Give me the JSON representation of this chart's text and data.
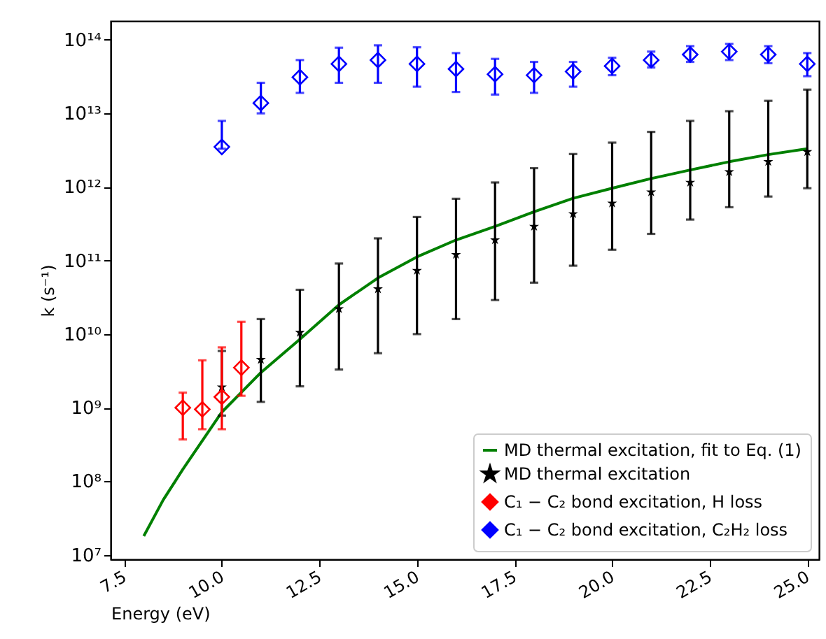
{
  "chart_data": {
    "type": "scatter",
    "xlabel": "Energy (eV)",
    "ylabel": "k (s⁻¹)",
    "log": "y",
    "legend": "bottom right",
    "xlim": [
      7.15,
      25.3
    ],
    "xticks": [
      7.5,
      {
        "value": 10,
        "label": "10.0"
      },
      12.5,
      {
        "value": 15,
        "label": "15.0"
      },
      17.5,
      {
        "value": 20,
        "label": "20.0"
      },
      22.5,
      {
        "value": 25,
        "label": "25.0"
      }
    ],
    "ylim": [
      8700000,
      180000000000000
    ],
    "yticks": [
      {
        "value": 10000000,
        "label": "10⁷"
      },
      {
        "value": 100000000,
        "label": "10⁸"
      },
      {
        "value": 1000000000,
        "label": "10⁹"
      },
      {
        "value": 10000000000,
        "label": "10¹⁰"
      },
      {
        "value": 100000000000,
        "label": "10¹¹"
      },
      {
        "value": 1000000000000,
        "label": "10¹²"
      },
      {
        "value": 10000000000000,
        "label": "10¹³"
      },
      {
        "value": 100000000000000,
        "label": "10¹⁴"
      }
    ],
    "series": [
      {
        "name": "MD thermal excitation, fit to Eq. (1)",
        "type": "line",
        "color": "#008000",
        "marker": "none",
        "x": [
          8,
          8.5,
          9,
          10,
          11,
          12,
          13,
          14,
          15,
          16,
          17,
          18,
          19,
          20,
          21,
          22,
          23,
          24,
          25
        ],
        "values": [
          18000000,
          56000000,
          145000000,
          870000000,
          3000000000,
          8500000000,
          25000000000,
          58000000000,
          112000000000,
          190000000000,
          290000000000,
          460000000000,
          700000000000,
          960000000000,
          1300000000000,
          1700000000000,
          2200000000000,
          2750000000000,
          3300000000000
        ]
      },
      {
        "name": "MD thermal excitation",
        "color": "#000000",
        "marker": "star",
        "x": [
          10,
          11,
          12,
          13,
          14,
          15,
          16,
          17,
          18,
          19,
          20,
          21,
          22,
          23,
          24,
          25
        ],
        "values": [
          1900000000,
          4500000000,
          10500000000,
          22000000000,
          41000000000,
          73000000000,
          120000000000,
          190000000000,
          290000000000,
          430000000000,
          600000000000,
          850000000000,
          1150000000000,
          1600000000000,
          2200000000000,
          3000000000000
        ],
        "errors": [
          [
            780000000,
            5900000000
          ],
          [
            1200000000,
            16000000000
          ],
          [
            1950000000,
            40000000000
          ],
          [
            3300000000,
            91000000000
          ],
          [
            5500000000,
            200000000000
          ],
          [
            10000000000,
            390000000000
          ],
          [
            16000000000,
            690000000000
          ],
          [
            29000000000,
            1150000000000
          ],
          [
            50000000000,
            1800000000000
          ],
          [
            85000000000,
            2800000000000
          ],
          [
            140000000000,
            4000000000000
          ],
          [
            230000000000,
            5600000000000
          ],
          [
            360000000000,
            7900000000000
          ],
          [
            530000000000,
            10700000000000
          ],
          [
            740000000000,
            14800000000000
          ],
          [
            960000000000,
            21000000000000
          ]
        ]
      },
      {
        "name": "C₁ − C₂ bond excitation, H loss",
        "color": "#ff0000",
        "marker": "diamond",
        "x": [
          9,
          9.5,
          10,
          10.5
        ],
        "values": [
          1000000000,
          950000000,
          1400000000,
          3500000000
        ],
        "errors": [
          [
            370000000,
            1600000000
          ],
          [
            510000000,
            4400000000
          ],
          [
            510000000,
            6600000000
          ],
          [
            1450000000,
            14700000000
          ]
        ]
      },
      {
        "name": "C₁ − C₂ bond excitation, C₂H₂ loss",
        "color": "#0000ff",
        "marker": "diamond",
        "x": [
          10,
          11,
          12,
          13,
          14,
          15,
          16,
          17,
          18,
          19,
          20,
          21,
          22,
          23,
          24,
          25
        ],
        "values": [
          3500000000000,
          13800000000000,
          31000000000000,
          47000000000000,
          53000000000000,
          47000000000000,
          40000000000000,
          34000000000000,
          33000000000000,
          37000000000000,
          44000000000000,
          53000000000000,
          63000000000000,
          69000000000000,
          63000000000000,
          47000000000000
        ],
        "errors": [
          [
            3300000000000,
            7900000000000
          ],
          [
            10000000000000,
            26000000000000
          ],
          [
            19000000000000,
            53000000000000
          ],
          [
            26000000000000,
            78000000000000
          ],
          [
            26000000000000,
            84000000000000
          ],
          [
            23000000000000,
            79000000000000
          ],
          [
            19500000000000,
            66000000000000
          ],
          [
            18000000000000,
            55000000000000
          ],
          [
            19000000000000,
            50000000000000
          ],
          [
            23000000000000,
            50000000000000
          ],
          [
            33000000000000,
            57000000000000
          ],
          [
            42000000000000,
            69000000000000
          ],
          [
            50000000000000,
            82000000000000
          ],
          [
            53000000000000,
            88000000000000
          ],
          [
            48000000000000,
            82000000000000
          ],
          [
            32000000000000,
            66000000000000
          ]
        ]
      }
    ]
  }
}
